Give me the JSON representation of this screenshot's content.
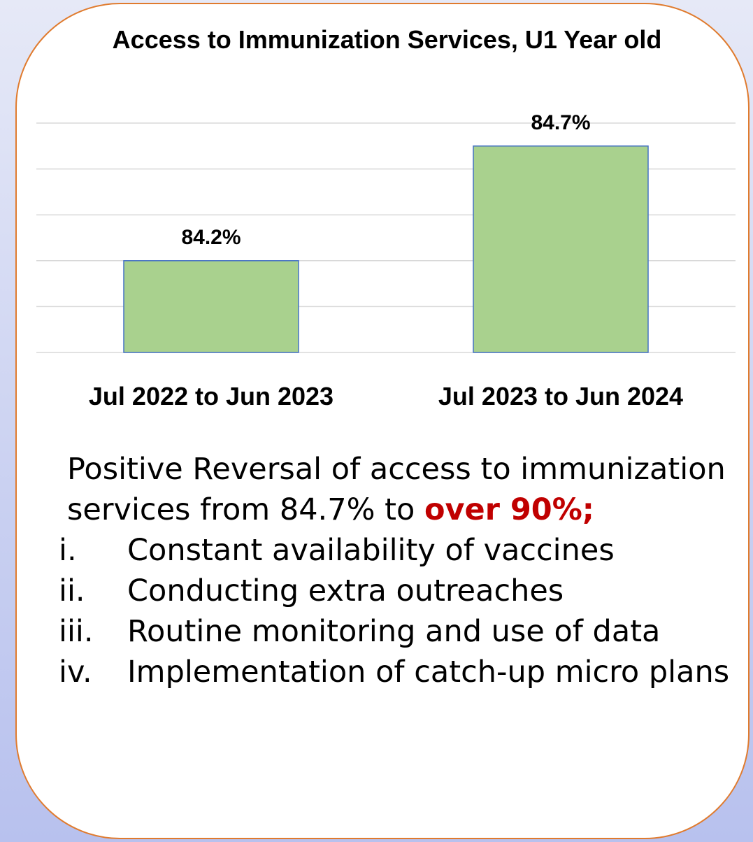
{
  "chart_data": {
    "type": "bar",
    "title": "Access to Immunization Services, U1 Year old",
    "categories": [
      "Jul 2022 to Jun 2023",
      "Jul 2023 to Jun 2024"
    ],
    "values": [
      84.2,
      84.7
    ],
    "data_labels": [
      "84.2%",
      "84.7%"
    ],
    "ylim": [
      83.8,
      84.8
    ],
    "grid": true,
    "legend": "none",
    "colors": {
      "bar_fill": "#a9d18e",
      "bar_border": "#4472c4",
      "gridline": "#d9d9d9"
    }
  },
  "text": {
    "intro_before": "Positive Reversal of access to immunization services from 84.7% to ",
    "intro_highlight": "over 90%;",
    "reasons": [
      {
        "num": "i.",
        "text": "Constant availability of vaccines"
      },
      {
        "num": "ii.",
        "text": "Conducting extra outreaches"
      },
      {
        "num": "iii.",
        "text": "Routine monitoring and use of data"
      },
      {
        "num": "iv.",
        "text": "Implementation of catch-up micro plans"
      }
    ],
    "highlight_color": "#c00000"
  },
  "colors": {
    "card_border": "#e07b2e",
    "background_top": "#e6e9f7",
    "background_bottom": "#b8c1ee"
  }
}
